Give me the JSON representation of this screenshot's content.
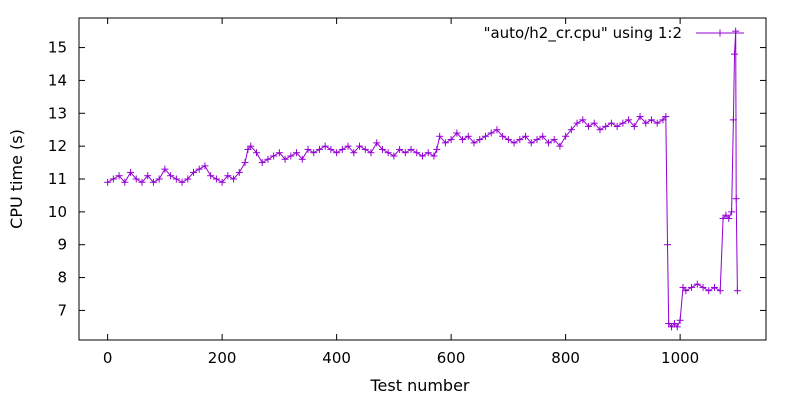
{
  "chart_data": {
    "type": "line",
    "title": "",
    "xlabel": "Test number",
    "ylabel": "CPU time (s)",
    "xlim": [
      -50,
      1150
    ],
    "ylim": [
      6.1,
      15.9
    ],
    "xticks": [
      0,
      200,
      400,
      600,
      800,
      1000
    ],
    "yticks": [
      7,
      8,
      9,
      10,
      11,
      12,
      13,
      14,
      15
    ],
    "grid": false,
    "legend_position": "top-right",
    "series": [
      {
        "name": "\"auto/h2_cr.cpu\" using 1:2",
        "color": "#9400D3",
        "marker": "plus",
        "x": [
          0,
          10,
          20,
          30,
          40,
          50,
          60,
          70,
          80,
          90,
          100,
          110,
          120,
          130,
          140,
          150,
          160,
          170,
          180,
          190,
          200,
          210,
          220,
          230,
          240,
          245,
          250,
          260,
          270,
          280,
          290,
          300,
          310,
          320,
          330,
          340,
          350,
          360,
          370,
          380,
          390,
          400,
          410,
          420,
          430,
          440,
          450,
          460,
          470,
          480,
          490,
          500,
          510,
          520,
          530,
          540,
          550,
          560,
          570,
          575,
          580,
          590,
          600,
          610,
          620,
          630,
          640,
          650,
          660,
          670,
          680,
          690,
          700,
          710,
          720,
          730,
          740,
          750,
          760,
          770,
          780,
          790,
          800,
          810,
          820,
          830,
          840,
          850,
          860,
          870,
          880,
          890,
          900,
          910,
          920,
          930,
          940,
          950,
          960,
          970,
          975,
          978,
          980,
          985,
          990,
          995,
          1000,
          1005,
          1010,
          1020,
          1030,
          1040,
          1050,
          1060,
          1070,
          1075,
          1080,
          1085,
          1090,
          1093,
          1095,
          1097,
          1098,
          1100
        ],
        "y": [
          10.9,
          11.0,
          11.1,
          10.9,
          11.2,
          11.0,
          10.9,
          11.1,
          10.9,
          11.0,
          11.3,
          11.1,
          11.0,
          10.9,
          11.0,
          11.2,
          11.3,
          11.4,
          11.1,
          11.0,
          10.9,
          11.1,
          11.0,
          11.2,
          11.5,
          11.9,
          12.0,
          11.8,
          11.5,
          11.6,
          11.7,
          11.8,
          11.6,
          11.7,
          11.8,
          11.6,
          11.9,
          11.8,
          11.9,
          12.0,
          11.9,
          11.8,
          11.9,
          12.0,
          11.8,
          12.0,
          11.9,
          11.8,
          12.1,
          11.9,
          11.8,
          11.7,
          11.9,
          11.8,
          11.9,
          11.8,
          11.7,
          11.8,
          11.7,
          11.9,
          12.3,
          12.1,
          12.2,
          12.4,
          12.2,
          12.3,
          12.1,
          12.2,
          12.3,
          12.4,
          12.5,
          12.3,
          12.2,
          12.1,
          12.2,
          12.3,
          12.1,
          12.2,
          12.3,
          12.1,
          12.2,
          12.0,
          12.3,
          12.5,
          12.7,
          12.8,
          12.6,
          12.7,
          12.5,
          12.6,
          12.7,
          12.6,
          12.7,
          12.8,
          12.6,
          12.9,
          12.7,
          12.8,
          12.7,
          12.8,
          12.9,
          9.0,
          6.6,
          6.5,
          6.6,
          6.5,
          6.7,
          7.7,
          7.6,
          7.7,
          7.8,
          7.7,
          7.6,
          7.7,
          7.6,
          9.8,
          9.9,
          9.8,
          10.0,
          12.8,
          14.8,
          15.5,
          10.4,
          7.6
        ]
      }
    ]
  }
}
